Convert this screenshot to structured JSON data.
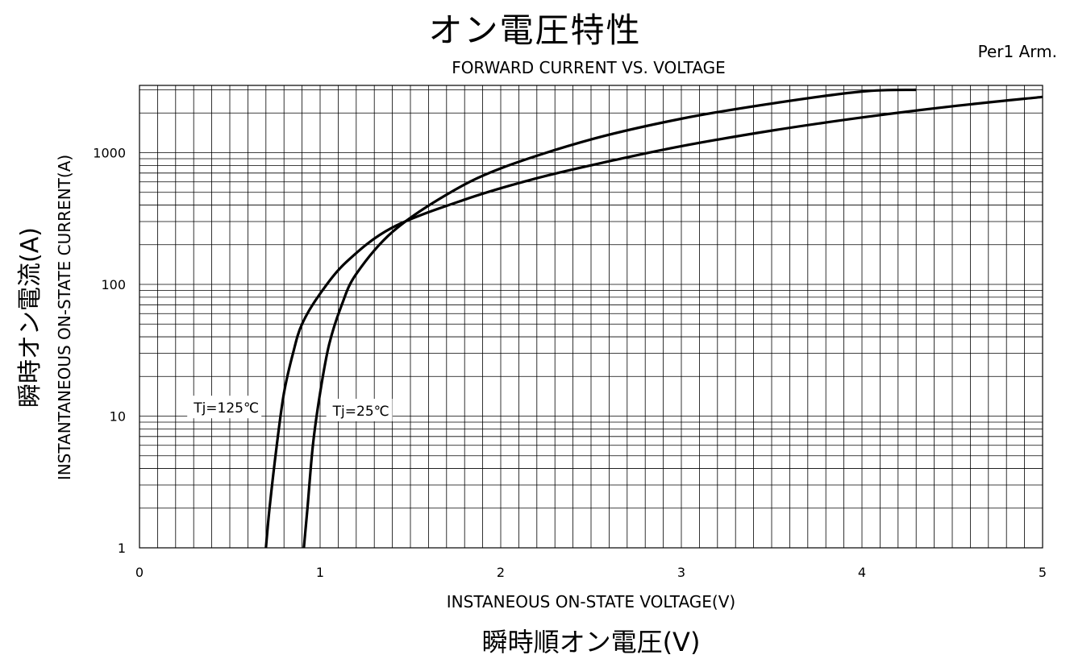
{
  "chart_data": {
    "type": "line",
    "title": "オン電圧特性",
    "subtitle": "FORWARD CURRENT VS. VOLTAGE",
    "note": "Per1 Arm.",
    "xlabel": "INSTANEOUS ON-STATE VOLTAGE(V)",
    "xlabel_ja": "瞬時順オン電圧(V)",
    "ylabel": "INSTANTANEOUS ON-STATE CURRENT(A)",
    "ylabel_ja": "瞬時オン電流(A)",
    "xlim": [
      0,
      5
    ],
    "ylim": [
      1,
      3000
    ],
    "yscale": "log",
    "grid": true,
    "x_ticks": [
      "0",
      "1",
      "2",
      "3",
      "4",
      "5"
    ],
    "y_ticks": [
      "1",
      "10",
      "100",
      "1000"
    ],
    "series": [
      {
        "name": "Tj=125℃",
        "x": [
          0.7,
          0.72,
          0.76,
          0.8,
          0.85,
          0.9,
          1.0,
          1.15,
          1.4,
          1.8,
          2.2,
          2.6,
          3.0,
          3.5,
          4.0,
          4.5,
          5.0
        ],
        "y": [
          1,
          2,
          6,
          15,
          30,
          50,
          85,
          150,
          270,
          440,
          640,
          860,
          1120,
          1470,
          1850,
          2250,
          2650
        ]
      },
      {
        "name": "Tj=25℃",
        "x": [
          0.91,
          0.93,
          0.96,
          1.0,
          1.05,
          1.12,
          1.2,
          1.4,
          1.7,
          2.0,
          2.5,
          3.0,
          3.5,
          4.0,
          4.3
        ],
        "y": [
          1,
          2,
          6,
          15,
          35,
          70,
          120,
          250,
          480,
          760,
          1260,
          1810,
          2360,
          2910,
          3000
        ]
      }
    ],
    "annotations": [
      "Tj=125℃",
      "Tj=25℃"
    ]
  }
}
